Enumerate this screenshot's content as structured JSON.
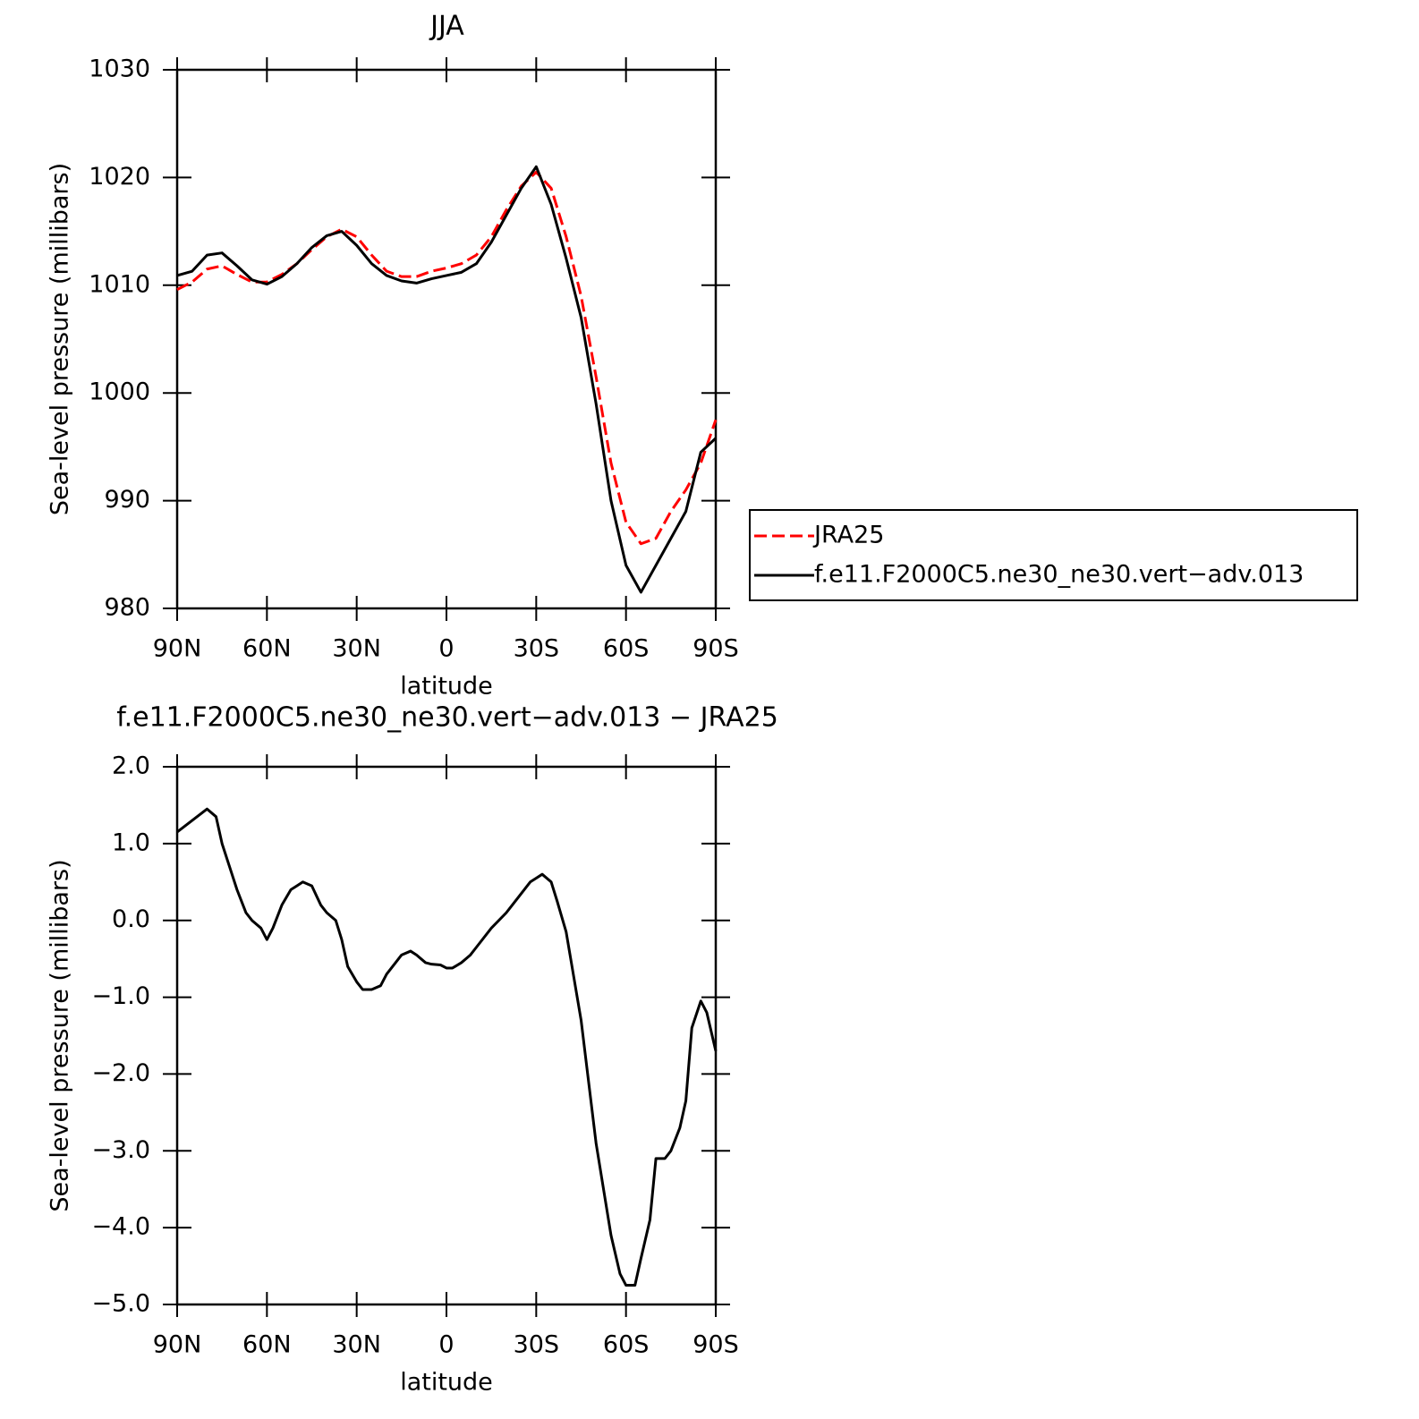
{
  "chart_data": [
    {
      "type": "line",
      "title": "JJA",
      "xlabel": "latitude",
      "ylabel": "Sea-level pressure (millibars)",
      "xlim": [
        90,
        -90
      ],
      "xticks": [
        {
          "value": 90,
          "label": "90N"
        },
        {
          "value": 60,
          "label": "60N"
        },
        {
          "value": 30,
          "label": "30N"
        },
        0,
        {
          "value": -30,
          "label": "30S"
        },
        {
          "value": -60,
          "label": "60S"
        },
        {
          "value": -90,
          "label": "90S"
        }
      ],
      "ylim": [
        980,
        1030
      ],
      "yticks": [
        980,
        990,
        1000,
        1010,
        1020,
        1030
      ],
      "legend": "right",
      "x": [
        90,
        85,
        80,
        75,
        70,
        65,
        60,
        55,
        50,
        45,
        40,
        35,
        30,
        25,
        20,
        15,
        10,
        5,
        0,
        -5,
        -10,
        -15,
        -20,
        -25,
        -30,
        -35,
        -40,
        -45,
        -50,
        -55,
        -60,
        -65,
        -70,
        -75,
        -80,
        -85,
        -90
      ],
      "series": [
        {
          "name": "JRA25",
          "color": "#ff0000",
          "dash": "dashed",
          "values": [
            1009.6,
            1010.3,
            1011.5,
            1011.8,
            1011.0,
            1010.3,
            1010.3,
            1011.0,
            1012.0,
            1013.3,
            1014.5,
            1015.2,
            1014.5,
            1012.8,
            1011.3,
            1010.8,
            1010.8,
            1011.3,
            1011.6,
            1012.0,
            1012.8,
            1014.5,
            1017.0,
            1019.2,
            1020.5,
            1019.0,
            1014.5,
            1009.0,
            1001.5,
            993.5,
            988.0,
            986.0,
            986.5,
            989.0,
            991.0,
            993.5,
            997.5
          ]
        },
        {
          "name": "f.e11.F2000C5.ne30_ne30.vert−adv.013",
          "color": "#000000",
          "dash": "solid",
          "values": [
            1010.9,
            1011.3,
            1012.8,
            1013.0,
            1011.8,
            1010.5,
            1010.1,
            1010.8,
            1012.0,
            1013.5,
            1014.6,
            1015.0,
            1013.7,
            1012.0,
            1010.9,
            1010.4,
            1010.2,
            1010.6,
            1010.9,
            1011.2,
            1012.0,
            1014.0,
            1016.5,
            1019.0,
            1021.0,
            1017.5,
            1012.5,
            1007.0,
            999.0,
            990.0,
            984.0,
            981.5,
            984.0,
            986.5,
            989.0,
            994.5,
            995.8
          ]
        }
      ]
    },
    {
      "type": "line",
      "title": "f.e11.F2000C5.ne30_ne30.vert−adv.013 − JRA25",
      "xlabel": "latitude",
      "ylabel": "Sea-level pressure (millibars)",
      "xlim": [
        90,
        -90
      ],
      "xticks": [
        {
          "value": 90,
          "label": "90N"
        },
        {
          "value": 60,
          "label": "60N"
        },
        {
          "value": 30,
          "label": "30N"
        },
        0,
        {
          "value": -30,
          "label": "30S"
        },
        {
          "value": -60,
          "label": "60S"
        },
        {
          "value": -90,
          "label": "90S"
        }
      ],
      "ylim": [
        -5,
        2
      ],
      "yticks": [
        {
          "value": -5,
          "label": "−5.0"
        },
        {
          "value": -4,
          "label": "−4.0"
        },
        {
          "value": -3,
          "label": "−3.0"
        },
        {
          "value": -2,
          "label": "−2.0"
        },
        {
          "value": -1,
          "label": "−1.0"
        },
        {
          "value": 0,
          "label": "0.0"
        },
        {
          "value": 1,
          "label": "1.0"
        },
        {
          "value": 2,
          "label": "2.0"
        }
      ],
      "x": [
        90,
        85,
        80,
        77,
        75,
        70,
        67,
        65,
        62,
        60,
        58,
        55,
        52,
        50,
        48,
        45,
        42,
        40,
        37,
        35,
        33,
        30,
        28,
        25,
        22,
        20,
        17,
        15,
        12,
        10,
        7,
        5,
        2,
        0,
        -2,
        -5,
        -8,
        -10,
        -15,
        -20,
        -25,
        -28,
        -30,
        -32,
        -35,
        -37,
        -40,
        -45,
        -50,
        -55,
        -58,
        -60,
        -63,
        -65,
        -68,
        -70,
        -73,
        -75,
        -78,
        -80,
        -82,
        -85,
        -87,
        -90
      ],
      "series": [
        {
          "color": "#000000",
          "dash": "solid",
          "values": [
            1.15,
            1.3,
            1.45,
            1.35,
            1.0,
            0.4,
            0.1,
            0.0,
            -0.1,
            -0.25,
            -0.1,
            0.2,
            0.4,
            0.45,
            0.5,
            0.45,
            0.2,
            0.1,
            0.0,
            -0.25,
            -0.6,
            -0.8,
            -0.9,
            -0.9,
            -0.85,
            -0.7,
            -0.55,
            -0.45,
            -0.4,
            -0.45,
            -0.55,
            -0.57,
            -0.58,
            -0.62,
            -0.62,
            -0.55,
            -0.45,
            -0.35,
            -0.1,
            0.1,
            0.35,
            0.5,
            0.55,
            0.6,
            0.5,
            0.25,
            -0.15,
            -1.3,
            -2.9,
            -4.1,
            -4.6,
            -4.75,
            -4.75,
            -4.4,
            -3.9,
            -3.1,
            -3.1,
            -3.0,
            -2.7,
            -2.35,
            -1.4,
            -1.05,
            -1.2,
            -1.7
          ]
        }
      ]
    }
  ]
}
